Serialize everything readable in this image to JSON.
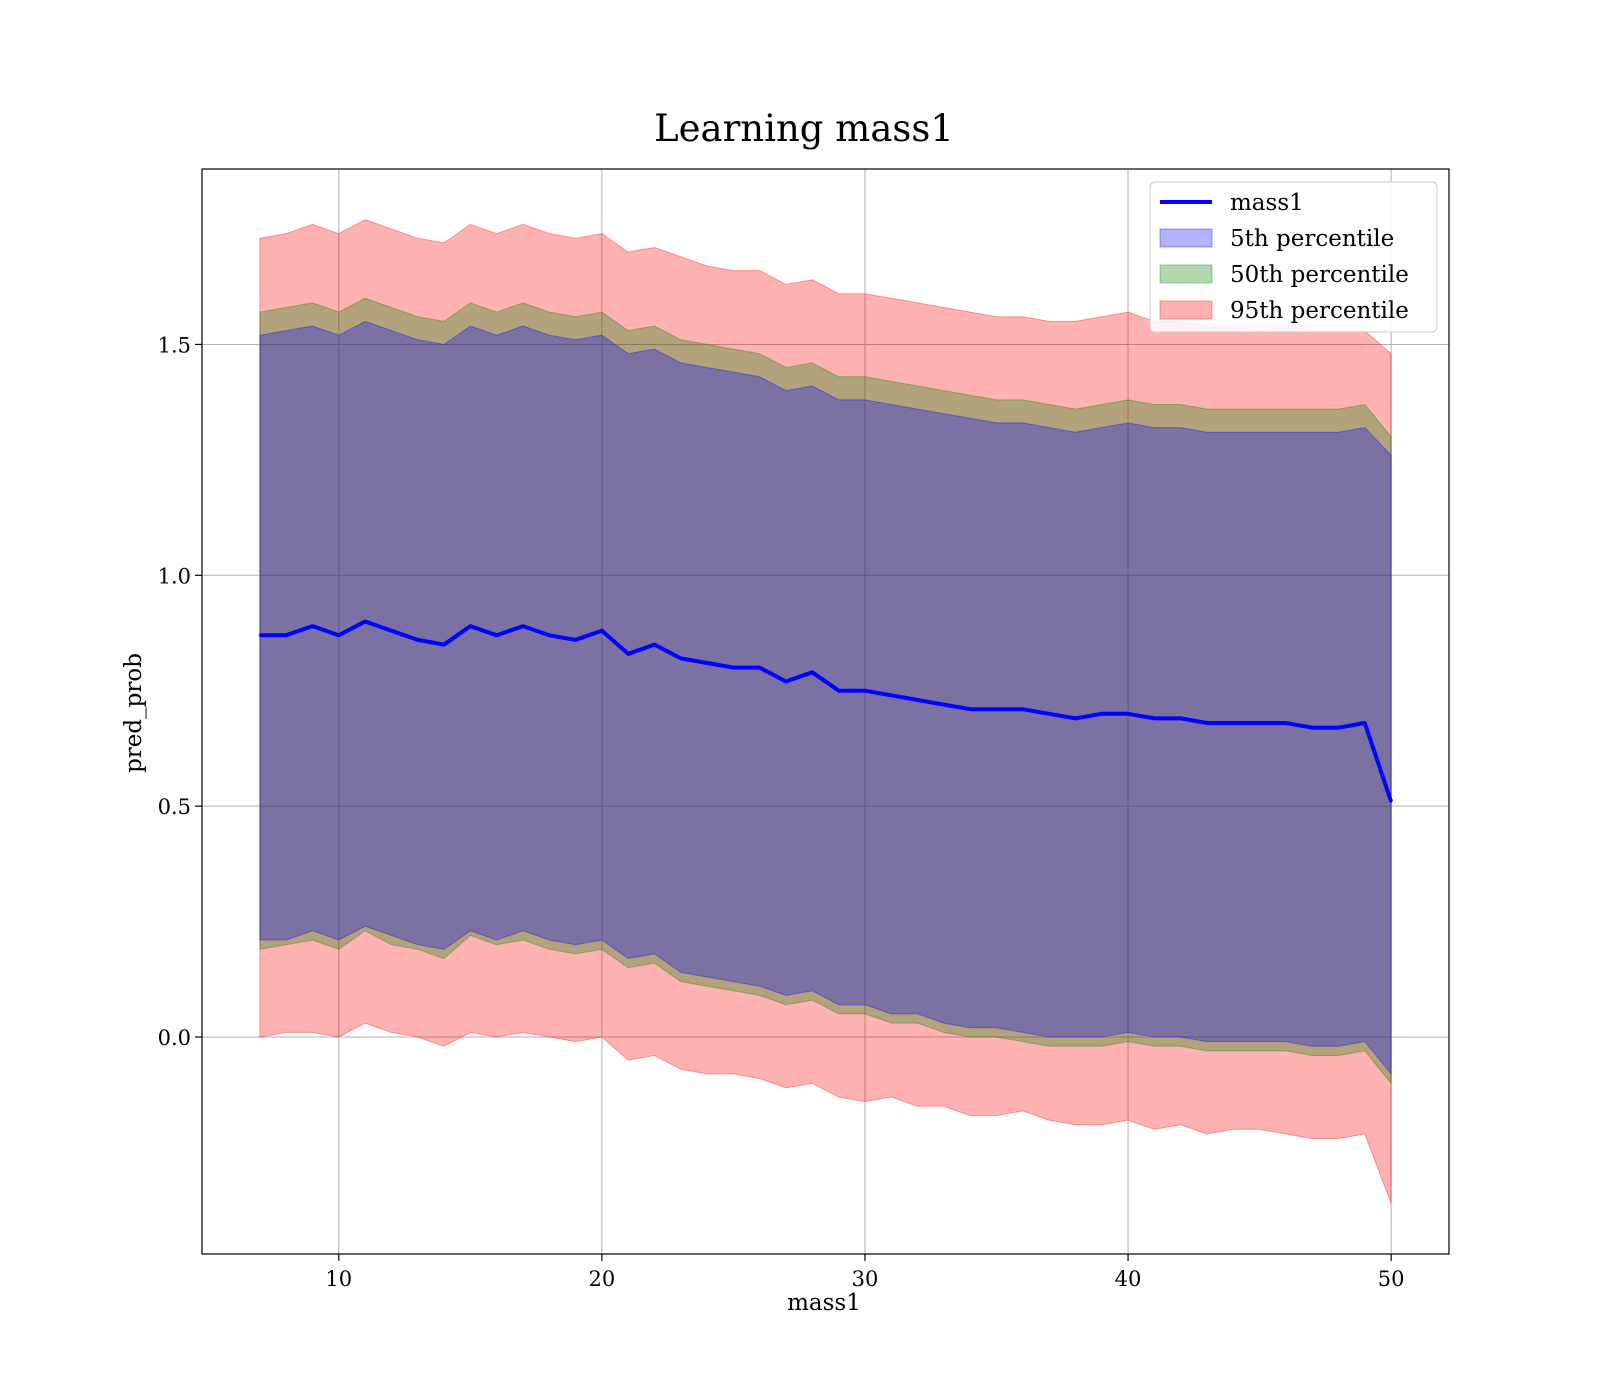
{
  "chart_data": {
    "type": "area",
    "title": "Learning mass1",
    "xlabel": "mass1",
    "ylabel": "pred_prob",
    "xlim": [
      4.8,
      52.2
    ],
    "ylim": [
      -0.47,
      1.88
    ],
    "xticks": [
      10,
      20,
      30,
      40,
      50
    ],
    "xtick_labels": [
      "10",
      "20",
      "30",
      "40",
      "50"
    ],
    "yticks": [
      0.0,
      0.5,
      1.0,
      1.5
    ],
    "ytick_labels": [
      "0.0",
      "0.5",
      "1.0",
      "1.5"
    ],
    "grid": true,
    "legend_position": "top-right",
    "x": [
      7,
      8,
      9,
      10,
      11,
      12,
      13,
      14,
      15,
      16,
      17,
      18,
      19,
      20,
      21,
      22,
      23,
      24,
      25,
      26,
      27,
      28,
      29,
      30,
      31,
      32,
      33,
      34,
      35,
      36,
      37,
      38,
      39,
      40,
      41,
      42,
      43,
      44,
      45,
      46,
      47,
      48,
      49,
      50
    ],
    "line": {
      "name": "mass1",
      "color": "#0000ff",
      "values": [
        0.87,
        0.87,
        0.89,
        0.87,
        0.9,
        0.88,
        0.86,
        0.85,
        0.89,
        0.87,
        0.89,
        0.87,
        0.86,
        0.88,
        0.83,
        0.85,
        0.82,
        0.81,
        0.8,
        0.8,
        0.77,
        0.79,
        0.75,
        0.75,
        0.74,
        0.73,
        0.72,
        0.71,
        0.71,
        0.71,
        0.7,
        0.69,
        0.7,
        0.7,
        0.69,
        0.69,
        0.68,
        0.68,
        0.68,
        0.68,
        0.67,
        0.67,
        0.68,
        0.51
      ]
    },
    "bands": [
      {
        "name": "95th percentile",
        "color": "#ff0000",
        "opacity": 0.3,
        "lower": [
          0.0,
          0.01,
          0.01,
          0.0,
          0.03,
          0.01,
          0.0,
          -0.02,
          0.01,
          0.0,
          0.01,
          0.0,
          -0.01,
          0.0,
          -0.05,
          -0.04,
          -0.07,
          -0.08,
          -0.08,
          -0.09,
          -0.11,
          -0.1,
          -0.13,
          -0.14,
          -0.13,
          -0.15,
          -0.15,
          -0.17,
          -0.17,
          -0.16,
          -0.18,
          -0.19,
          -0.19,
          -0.18,
          -0.2,
          -0.19,
          -0.21,
          -0.2,
          -0.2,
          -0.21,
          -0.22,
          -0.22,
          -0.21,
          -0.36
        ],
        "upper": [
          1.73,
          1.74,
          1.76,
          1.74,
          1.77,
          1.75,
          1.73,
          1.72,
          1.76,
          1.74,
          1.76,
          1.74,
          1.73,
          1.74,
          1.7,
          1.71,
          1.69,
          1.67,
          1.66,
          1.66,
          1.63,
          1.64,
          1.61,
          1.61,
          1.6,
          1.59,
          1.58,
          1.57,
          1.56,
          1.56,
          1.55,
          1.55,
          1.56,
          1.57,
          1.55,
          1.55,
          1.54,
          1.54,
          1.53,
          1.54,
          1.53,
          1.53,
          1.53,
          1.48
        ]
      },
      {
        "name": "50th percentile",
        "color": "#008000",
        "opacity": 0.3,
        "lower": [
          0.19,
          0.2,
          0.21,
          0.19,
          0.23,
          0.2,
          0.19,
          0.17,
          0.22,
          0.2,
          0.21,
          0.19,
          0.18,
          0.19,
          0.15,
          0.16,
          0.12,
          0.11,
          0.1,
          0.09,
          0.07,
          0.08,
          0.05,
          0.05,
          0.03,
          0.03,
          0.01,
          0.0,
          0.0,
          -0.01,
          -0.02,
          -0.02,
          -0.02,
          -0.01,
          -0.02,
          -0.02,
          -0.03,
          -0.03,
          -0.03,
          -0.03,
          -0.04,
          -0.04,
          -0.03,
          -0.1
        ],
        "upper": [
          1.57,
          1.58,
          1.59,
          1.57,
          1.6,
          1.58,
          1.56,
          1.55,
          1.59,
          1.57,
          1.59,
          1.57,
          1.56,
          1.57,
          1.53,
          1.54,
          1.51,
          1.5,
          1.49,
          1.48,
          1.45,
          1.46,
          1.43,
          1.43,
          1.42,
          1.41,
          1.4,
          1.39,
          1.38,
          1.38,
          1.37,
          1.36,
          1.37,
          1.38,
          1.37,
          1.37,
          1.36,
          1.36,
          1.36,
          1.36,
          1.36,
          1.36,
          1.37,
          1.3
        ]
      },
      {
        "name": "5th percentile",
        "color": "#0000ff",
        "opacity": 0.3,
        "lower": [
          0.21,
          0.21,
          0.23,
          0.21,
          0.24,
          0.22,
          0.2,
          0.19,
          0.23,
          0.21,
          0.23,
          0.21,
          0.2,
          0.21,
          0.17,
          0.18,
          0.14,
          0.13,
          0.12,
          0.11,
          0.09,
          0.1,
          0.07,
          0.07,
          0.05,
          0.05,
          0.03,
          0.02,
          0.02,
          0.01,
          0.0,
          0.0,
          0.0,
          0.01,
          0.0,
          0.0,
          -0.01,
          -0.01,
          -0.01,
          -0.01,
          -0.02,
          -0.02,
          -0.01,
          -0.08
        ],
        "upper": [
          1.52,
          1.53,
          1.54,
          1.52,
          1.55,
          1.53,
          1.51,
          1.5,
          1.54,
          1.52,
          1.54,
          1.52,
          1.51,
          1.52,
          1.48,
          1.49,
          1.46,
          1.45,
          1.44,
          1.43,
          1.4,
          1.41,
          1.38,
          1.38,
          1.37,
          1.36,
          1.35,
          1.34,
          1.33,
          1.33,
          1.32,
          1.31,
          1.32,
          1.33,
          1.32,
          1.32,
          1.31,
          1.31,
          1.31,
          1.31,
          1.31,
          1.31,
          1.32,
          1.26
        ]
      }
    ],
    "legend": [
      "mass1",
      "5th percentile",
      "50th percentile",
      "95th percentile"
    ]
  },
  "colors": {
    "line": "#0000ff",
    "band_5th": "#0000ff",
    "band_50th": "#008000",
    "band_95th": "#ff0000",
    "grid": "#b0b0b0"
  }
}
